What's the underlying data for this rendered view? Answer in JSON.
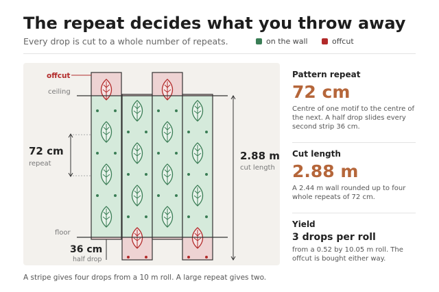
{
  "header": {
    "title": "The repeat decides what you throw away",
    "subtitle": "Every drop is cut to a whole number of repeats."
  },
  "legend": [
    {
      "label": "on the wall",
      "color": "#3a7d55"
    },
    {
      "label": "offcut",
      "color": "#b22a2a"
    }
  ],
  "diagram": {
    "offcut": "offcut",
    "ceiling": "ceiling",
    "floor": "floor",
    "repeat_value": "72 cm",
    "repeat_label": "repeat",
    "length_value": "2.88 m",
    "length_label": "cut length",
    "half_value": "36 cm",
    "half_label": "half drop"
  },
  "panels": [
    {
      "heading": "Pattern repeat",
      "value": "72 cm",
      "text": "Centre of one motif to the centre of the next. A half drop slides every second strip 36 cm."
    },
    {
      "heading": "Cut length",
      "value": "2.88 m",
      "text": "A 2.44 m wall rounded up to four whole repeats of 72 cm."
    },
    {
      "heading": "Yield",
      "value": "3 drops per roll",
      "text": "from a 0.52 by 10.05 m roll. The offcut is bought either way."
    }
  ],
  "footnote": "A stripe gives four drops from a 10 m roll. A large repeat gives two."
}
